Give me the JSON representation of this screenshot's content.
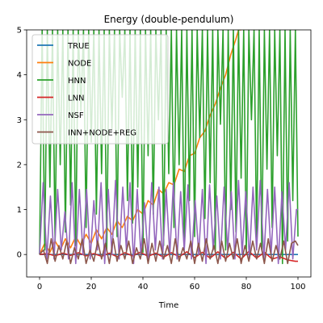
{
  "chart_data": {
    "type": "line",
    "title": "Energy (double-pendulum)",
    "xlabel": "Time",
    "ylabel": "",
    "xlim": [
      -5,
      105
    ],
    "ylim": [
      -0.5,
      5
    ],
    "xticks": [
      0,
      20,
      40,
      60,
      80,
      100
    ],
    "yticks": [
      0,
      1,
      2,
      3,
      4,
      5
    ],
    "grid": false,
    "legend_position": "upper-left",
    "series": [
      {
        "name": "TRUE",
        "color": "#1f77b4",
        "x": [
          0,
          100
        ],
        "y": [
          0,
          0
        ]
      },
      {
        "name": "NODE",
        "color": "#ff7f0e",
        "x": [
          0,
          2,
          4,
          6,
          8,
          10,
          12,
          14,
          16,
          18,
          20,
          22,
          24,
          26,
          28,
          30,
          32,
          34,
          36,
          38,
          40,
          42,
          44,
          46,
          48,
          50,
          52,
          54,
          56,
          58,
          60,
          62,
          64,
          66,
          68,
          70,
          72,
          74,
          76,
          77,
          78
        ],
        "y": [
          0.0,
          0.25,
          0.05,
          0.3,
          0.1,
          0.35,
          0.15,
          0.4,
          0.2,
          0.45,
          0.25,
          0.55,
          0.35,
          0.6,
          0.45,
          0.75,
          0.6,
          0.85,
          0.75,
          1.0,
          0.9,
          1.2,
          1.1,
          1.45,
          1.35,
          1.6,
          1.55,
          1.9,
          1.85,
          2.2,
          2.25,
          2.6,
          2.75,
          3.1,
          3.35,
          3.7,
          4.0,
          4.45,
          4.8,
          5.0,
          5.0
        ]
      },
      {
        "name": "HNN",
        "color": "#2ca02c",
        "x": [
          0,
          1,
          2,
          3,
          4,
          5,
          6,
          7,
          8,
          9,
          10,
          11,
          12,
          13,
          14,
          15,
          16,
          17,
          18,
          19,
          20,
          21,
          22,
          23,
          24,
          25,
          26,
          27,
          28,
          29,
          30,
          31,
          32,
          33,
          34,
          35,
          36,
          37,
          38,
          39,
          40,
          41,
          42,
          43,
          44,
          45,
          46,
          47,
          48,
          49,
          50,
          51,
          52,
          53,
          54,
          55,
          56,
          57,
          58,
          59,
          60,
          61,
          62,
          63,
          64,
          65,
          66,
          67,
          68,
          69,
          70,
          71,
          72,
          73,
          74,
          75,
          76,
          77,
          78,
          79,
          80,
          81,
          82,
          83,
          84,
          85,
          86,
          87,
          88,
          89,
          90,
          91,
          92,
          93,
          94,
          95,
          96,
          97,
          98,
          99,
          100
        ],
        "y": [
          0.0,
          5.0,
          0.1,
          5.0,
          1.5,
          5.0,
          0.3,
          5.0,
          2.0,
          5.0,
          0.5,
          5.0,
          1.1,
          5.0,
          0.2,
          5.0,
          3.2,
          5.0,
          0.6,
          5.0,
          2.5,
          5.0,
          0.9,
          5.0,
          1.8,
          5.0,
          0.1,
          5.0,
          2.8,
          5.0,
          0.4,
          5.0,
          3.5,
          5.0,
          1.2,
          5.0,
          0.7,
          5.0,
          1.5,
          5.0,
          0.05,
          5.0,
          2.2,
          5.0,
          0.9,
          5.0,
          3.0,
          5.0,
          0.2,
          5.0,
          1.8,
          5.0,
          0.6,
          5.0,
          2.0,
          5.0,
          0.15,
          5.0,
          1.2,
          5.0,
          0.4,
          5.0,
          2.6,
          5.0,
          0.8,
          5.0,
          1.6,
          5.0,
          0.05,
          5.0,
          2.9,
          5.0,
          0.1,
          5.0,
          1.0,
          5.0,
          0.5,
          5.0,
          1.7,
          5.0,
          0.0,
          5.0,
          3.0,
          5.0,
          0.3,
          5.0,
          0.1,
          5.0,
          1.9,
          5.0,
          0.6,
          5.0,
          2.2,
          5.0,
          -0.2,
          5.0,
          0.3,
          5.0,
          1.2,
          5.0,
          0.4
        ]
      },
      {
        "name": "LNN",
        "color": "#d62728",
        "x": [
          0,
          3,
          6,
          9,
          12,
          15,
          18,
          21,
          24,
          27,
          30,
          33,
          36,
          39,
          42,
          45,
          48,
          51,
          54,
          57,
          60,
          63,
          66,
          69,
          72,
          75,
          78,
          81,
          84,
          87,
          90,
          93,
          96,
          99,
          100
        ],
        "y": [
          0.0,
          0.02,
          -0.03,
          0.03,
          -0.02,
          0.04,
          -0.03,
          0.02,
          -0.04,
          0.03,
          -0.05,
          0.04,
          -0.03,
          0.05,
          -0.04,
          0.03,
          -0.06,
          0.04,
          -0.05,
          0.06,
          -0.07,
          0.05,
          -0.08,
          0.06,
          -0.09,
          0.05,
          -0.1,
          0.07,
          -0.08,
          0.05,
          -0.1,
          -0.05,
          -0.12,
          -0.15,
          -0.15
        ]
      },
      {
        "name": "NSF",
        "color": "#9467bd",
        "x": [
          0,
          1.4,
          2.8,
          4.2,
          5.6,
          7.0,
          8.4,
          9.8,
          11.2,
          12.6,
          14.0,
          15.4,
          16.8,
          18.2,
          19.6,
          21.0,
          22.4,
          23.8,
          25.2,
          26.6,
          28.0,
          29.4,
          30.8,
          32.2,
          33.6,
          35.0,
          36.4,
          37.8,
          39.2,
          40.6,
          42.0,
          43.4,
          44.8,
          46.2,
          47.6,
          49.0,
          50.4,
          51.8,
          53.2,
          54.6,
          56.0,
          57.4,
          58.8,
          60.2,
          61.6,
          63.0,
          64.4,
          65.8,
          67.2,
          68.6,
          70.0,
          71.4,
          72.8,
          74.2,
          75.6,
          77.0,
          78.4,
          79.8,
          81.2,
          82.6,
          84.0,
          85.4,
          86.8,
          88.2,
          89.6,
          91.0,
          92.4,
          93.8,
          95.2,
          96.6,
          98.0,
          99.4,
          100
        ],
        "y": [
          0.0,
          1.6,
          -0.1,
          1.3,
          -0.1,
          1.45,
          0.1,
          0.95,
          -0.1,
          1.6,
          -0.2,
          1.45,
          0.0,
          1.45,
          -0.1,
          1.2,
          0.1,
          1.6,
          -0.2,
          1.45,
          0.0,
          1.65,
          -0.1,
          1.5,
          0.1,
          1.6,
          -0.2,
          1.45,
          0.0,
          1.15,
          -0.1,
          1.6,
          0.1,
          1.5,
          -0.1,
          1.45,
          0.0,
          1.6,
          -0.1,
          1.4,
          0.1,
          1.55,
          -0.1,
          1.2,
          0.0,
          1.45,
          -0.2,
          1.55,
          0.1,
          1.3,
          -0.1,
          1.5,
          0.1,
          1.4,
          -0.1,
          1.65,
          0.0,
          1.4,
          -0.1,
          1.5,
          0.1,
          1.65,
          -0.1,
          1.45,
          0.0,
          1.5,
          -0.2,
          1.4,
          0.1,
          1.6,
          -0.1,
          1.0,
          1.0
        ]
      },
      {
        "name": "INN+NODE+REG",
        "color": "#8c564b",
        "x": [
          0,
          1.5,
          3,
          4.5,
          6,
          7.5,
          9,
          10.5,
          12,
          13.5,
          15,
          16.5,
          18,
          19.5,
          21,
          22.5,
          24,
          25.5,
          27,
          28.5,
          30,
          31.5,
          33,
          34.5,
          36,
          37.5,
          39,
          40.5,
          42,
          43.5,
          45,
          46.5,
          48,
          49.5,
          51,
          52.5,
          54,
          55.5,
          57,
          58.5,
          60,
          61.5,
          63,
          64.5,
          66,
          67.5,
          69,
          70.5,
          72,
          73.5,
          75,
          76.5,
          78,
          79.5,
          81,
          82.5,
          84,
          85.5,
          87,
          88.5,
          90,
          91.5,
          93,
          94.5,
          96,
          97.5,
          99,
          100
        ],
        "y": [
          0.0,
          0.1,
          -0.2,
          0.35,
          -0.15,
          0.2,
          -0.1,
          0.3,
          -0.2,
          0.15,
          -0.1,
          0.35,
          -0.2,
          0.1,
          -0.15,
          0.3,
          -0.1,
          0.25,
          -0.2,
          0.35,
          -0.15,
          0.2,
          -0.1,
          0.3,
          -0.2,
          0.15,
          -0.1,
          0.35,
          -0.2,
          0.25,
          -0.15,
          0.3,
          -0.1,
          0.2,
          -0.2,
          0.35,
          -0.15,
          0.15,
          -0.1,
          0.3,
          -0.2,
          0.25,
          -0.15,
          0.35,
          -0.1,
          0.2,
          -0.2,
          0.3,
          -0.15,
          0.25,
          -0.1,
          0.35,
          -0.2,
          0.2,
          -0.15,
          0.3,
          -0.1,
          0.25,
          -0.2,
          0.35,
          -0.15,
          0.2,
          -0.1,
          0.3,
          -0.2,
          0.25,
          0.3,
          0.2
        ]
      }
    ]
  }
}
